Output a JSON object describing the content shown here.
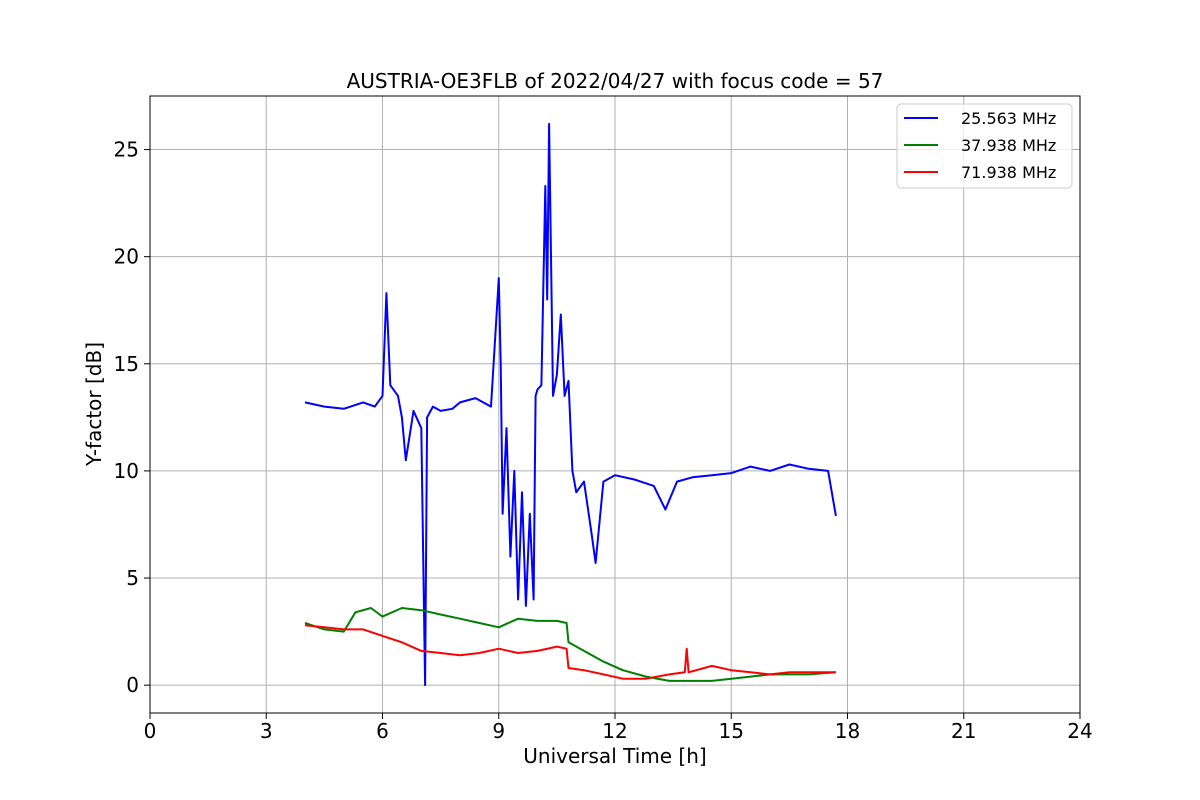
{
  "chart_data": {
    "type": "line",
    "title": "AUSTRIA-OE3FLB of 2022/04/27 with focus code = 57",
    "xlabel": "Universal Time [h]",
    "ylabel": "Y-factor [dB]",
    "xlim": [
      0,
      24
    ],
    "ylim": [
      -1.3,
      27.5
    ],
    "xticks": [
      0,
      3,
      6,
      9,
      12,
      15,
      18,
      21,
      24
    ],
    "yticks": [
      0,
      5,
      10,
      15,
      20,
      25
    ],
    "grid": true,
    "legend_position": "top-right",
    "series": [
      {
        "name": "25.563 MHz",
        "color": "#0000ff",
        "x": [
          4.0,
          4.5,
          5.0,
          5.5,
          5.8,
          6.0,
          6.1,
          6.2,
          6.4,
          6.5,
          6.6,
          6.8,
          7.0,
          7.1,
          7.15,
          7.3,
          7.5,
          7.8,
          8.0,
          8.4,
          8.8,
          9.0,
          9.05,
          9.1,
          9.2,
          9.3,
          9.4,
          9.5,
          9.6,
          9.7,
          9.8,
          9.9,
          9.95,
          10.0,
          10.1,
          10.2,
          10.25,
          10.3,
          10.4,
          10.5,
          10.6,
          10.7,
          10.8,
          10.9,
          11.0,
          11.2,
          11.4,
          11.5,
          11.7,
          12.0,
          12.5,
          13.0,
          13.3,
          13.6,
          14.0,
          14.5,
          15.0,
          15.5,
          16.0,
          16.5,
          17.0,
          17.5,
          17.7
        ],
        "y": [
          13.2,
          13.0,
          12.9,
          13.2,
          13.0,
          13.5,
          18.3,
          14.0,
          13.5,
          12.5,
          10.5,
          12.8,
          12.0,
          0.0,
          12.5,
          13.0,
          12.8,
          12.9,
          13.2,
          13.4,
          13.0,
          19.0,
          15.0,
          8.0,
          12.0,
          6.0,
          10.0,
          4.0,
          9.0,
          3.7,
          8.0,
          4.0,
          13.5,
          13.8,
          14.0,
          23.3,
          18.0,
          26.2,
          13.5,
          14.5,
          17.3,
          13.5,
          14.2,
          10.0,
          9.0,
          9.5,
          7.0,
          5.7,
          9.5,
          9.8,
          9.6,
          9.3,
          8.2,
          9.5,
          9.7,
          9.8,
          9.9,
          10.2,
          10.0,
          10.3,
          10.1,
          10.0,
          7.9
        ]
      },
      {
        "name": "37.938 MHz",
        "color": "#008000",
        "x": [
          4.0,
          4.5,
          5.0,
          5.3,
          5.7,
          6.0,
          6.5,
          7.0,
          7.5,
          8.0,
          8.5,
          9.0,
          9.5,
          10.0,
          10.5,
          10.75,
          10.8,
          11.2,
          11.7,
          12.2,
          12.8,
          13.4,
          14.0,
          14.5,
          15.0,
          15.5,
          16.0,
          16.5,
          17.0,
          17.7
        ],
        "y": [
          2.9,
          2.6,
          2.5,
          3.4,
          3.6,
          3.2,
          3.6,
          3.5,
          3.3,
          3.1,
          2.9,
          2.7,
          3.1,
          3.0,
          3.0,
          2.9,
          2.0,
          1.6,
          1.1,
          0.7,
          0.4,
          0.2,
          0.2,
          0.2,
          0.3,
          0.4,
          0.5,
          0.5,
          0.5,
          0.6
        ]
      },
      {
        "name": "71.938 MHz",
        "color": "#ff0000",
        "x": [
          4.0,
          4.5,
          5.0,
          5.5,
          6.0,
          6.5,
          7.0,
          7.5,
          8.0,
          8.5,
          9.0,
          9.5,
          10.0,
          10.5,
          10.75,
          10.8,
          11.2,
          11.7,
          12.2,
          12.8,
          13.4,
          13.8,
          13.85,
          13.9,
          14.5,
          15.0,
          15.5,
          16.0,
          16.5,
          17.0,
          17.7
        ],
        "y": [
          2.8,
          2.7,
          2.6,
          2.6,
          2.3,
          2.0,
          1.6,
          1.5,
          1.4,
          1.5,
          1.7,
          1.5,
          1.6,
          1.8,
          1.7,
          0.8,
          0.7,
          0.5,
          0.3,
          0.3,
          0.5,
          0.6,
          1.7,
          0.6,
          0.9,
          0.7,
          0.6,
          0.5,
          0.6,
          0.6,
          0.6
        ]
      }
    ]
  }
}
